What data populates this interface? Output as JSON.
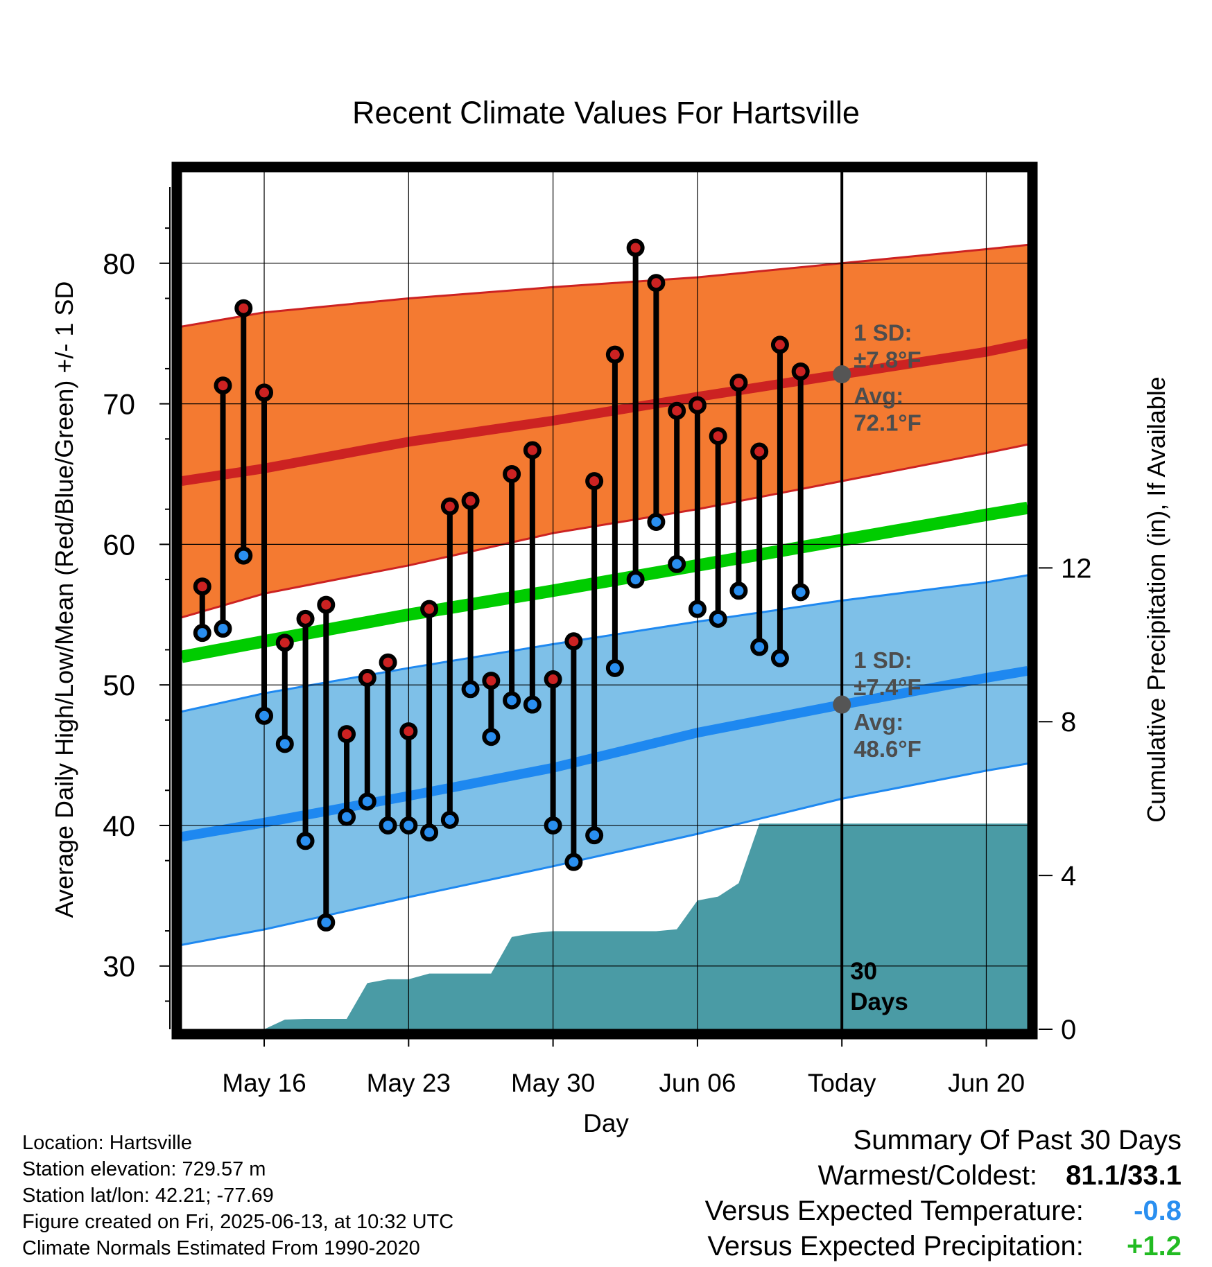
{
  "chart_data": {
    "type": "line",
    "title": "Recent Climate Values For Hartsville",
    "xlabel": "Day",
    "ylabel": "Average Daily High/Low/Mean (Red/Blue/Green) +/- 1 SD",
    "y2label": "Cumulative Precipitation (in), If Available",
    "ylim": [
      25.5,
      86.5
    ],
    "y2lim": [
      0,
      22.3
    ],
    "xlim": [
      "2025-05-12",
      "2025-06-22"
    ],
    "yticks": [
      "30",
      "40",
      "50",
      "60",
      "70",
      "80"
    ],
    "y2ticks": [
      "0",
      "4",
      "8",
      "12"
    ],
    "xticks": [
      {
        "x": "2025-05-16",
        "label": "May 16"
      },
      {
        "x": "2025-05-23",
        "label": "May 23"
      },
      {
        "x": "2025-05-30",
        "label": "May 30"
      },
      {
        "x": "2025-06-06",
        "label": "Jun 06"
      },
      {
        "x": "2025-06-13",
        "label": "Today"
      },
      {
        "x": "2025-06-20",
        "label": "Jun 20"
      }
    ],
    "today": "2025-06-13",
    "days_label": [
      "30",
      "Days"
    ],
    "normals": {
      "x": [
        "2025-05-12",
        "2025-05-16",
        "2025-05-23",
        "2025-05-30",
        "2025-06-06",
        "2025-06-13",
        "2025-06-20",
        "2025-06-22"
      ],
      "high_avg": [
        64.5,
        65.4,
        67.3,
        68.8,
        70.5,
        72.1,
        73.7,
        74.3
      ],
      "high_upper": [
        75.5,
        76.5,
        77.5,
        78.3,
        79.0,
        80.0,
        81.0,
        81.3
      ],
      "high_lower": [
        54.8,
        56.5,
        58.5,
        60.8,
        62.5,
        64.5,
        66.5,
        67.1
      ],
      "low_avg": [
        39.2,
        40.2,
        42.1,
        44.1,
        46.6,
        48.6,
        50.5,
        51.0
      ],
      "low_upper": [
        48.1,
        49.4,
        51.2,
        52.9,
        54.5,
        56.0,
        57.3,
        57.8
      ],
      "low_lower": [
        31.5,
        32.6,
        34.9,
        37.1,
        39.4,
        41.9,
        43.9,
        44.4
      ],
      "mean_avg": [
        52.0,
        53.1,
        55.0,
        56.7,
        58.5,
        60.3,
        62.1,
        62.6
      ]
    },
    "annotations": {
      "high_sd": [
        "1 SD:",
        "±7.8°F"
      ],
      "high_avg": [
        "Avg:",
        "72.1°F"
      ],
      "low_sd": [
        "1 SD:",
        "±7.4°F"
      ],
      "low_avg": [
        "Avg:",
        "48.6°F"
      ]
    },
    "observed": {
      "x": [
        "2025-05-13",
        "2025-05-14",
        "2025-05-15",
        "2025-05-16",
        "2025-05-17",
        "2025-05-18",
        "2025-05-19",
        "2025-05-20",
        "2025-05-21",
        "2025-05-22",
        "2025-05-23",
        "2025-05-24",
        "2025-05-25",
        "2025-05-26",
        "2025-05-27",
        "2025-05-28",
        "2025-05-29",
        "2025-05-30",
        "2025-05-31",
        "2025-06-01",
        "2025-06-02",
        "2025-06-03",
        "2025-06-04",
        "2025-06-05",
        "2025-06-06",
        "2025-06-07",
        "2025-06-08",
        "2025-06-09",
        "2025-06-10",
        "2025-06-11",
        "2025-06-12"
      ],
      "high": [
        57.0,
        71.3,
        76.8,
        70.8,
        53.0,
        54.7,
        55.7,
        46.5,
        50.5,
        51.6,
        46.7,
        55.4,
        62.7,
        63.1,
        50.3,
        65.0,
        66.7,
        50.4,
        53.1,
        64.5,
        73.5,
        81.1,
        78.6,
        69.5,
        69.9,
        67.7,
        71.5,
        66.6,
        74.2,
        72.3,
        null
      ],
      "low": [
        53.7,
        54.0,
        59.2,
        47.8,
        45.8,
        38.9,
        33.1,
        40.6,
        41.7,
        40.0,
        40.0,
        39.5,
        40.4,
        49.7,
        46.3,
        48.9,
        48.6,
        40.0,
        37.4,
        39.3,
        51.2,
        57.5,
        61.6,
        58.6,
        55.4,
        54.7,
        56.7,
        52.7,
        51.9,
        56.6,
        null
      ]
    },
    "precip_cumulative": {
      "x": [
        "2025-05-12",
        "2025-05-16",
        "2025-05-17",
        "2025-05-18",
        "2025-05-19",
        "2025-05-20",
        "2025-05-21",
        "2025-05-22",
        "2025-05-23",
        "2025-05-24",
        "2025-05-25",
        "2025-05-26",
        "2025-05-27",
        "2025-05-28",
        "2025-05-29",
        "2025-05-30",
        "2025-05-31",
        "2025-06-01",
        "2025-06-02",
        "2025-06-03",
        "2025-06-04",
        "2025-06-05",
        "2025-06-06",
        "2025-06-07",
        "2025-06-08",
        "2025-06-09",
        "2025-06-10",
        "2025-06-22"
      ],
      "values": [
        0,
        0,
        0.25,
        0.27,
        0.27,
        0.27,
        1.2,
        1.3,
        1.3,
        1.45,
        1.45,
        1.45,
        1.45,
        2.4,
        2.5,
        2.55,
        2.55,
        2.55,
        2.55,
        2.55,
        2.55,
        2.6,
        3.35,
        3.45,
        3.8,
        5.35,
        5.35,
        5.35
      ]
    },
    "colors": {
      "high_band": "#f47a31",
      "high_line": "#cc2222",
      "low_band": "#7ec0e8",
      "low_line": "#1e88f0",
      "mean_line": "#00cc00",
      "precip": "#4a9ba5",
      "high_marker": "#cc2222",
      "low_marker": "#2a8ff0",
      "annotation": "#4d4d4d",
      "today_marker": "#555555"
    },
    "grid": true
  },
  "footer": {
    "location": "Location: Hartsville",
    "elevation": "Station elevation: 729.57 m",
    "latlon": "Station lat/lon: 42.21; -77.69",
    "created": "Figure created on Fri, 2025-06-13, at 10:32 UTC",
    "normals": "Climate Normals Estimated From 1990-2020"
  },
  "summary": {
    "title": "Summary Of Past 30 Days",
    "warm_cold_label": "Warmest/Coldest:",
    "warm_cold_value": "81.1/33.1",
    "temp_label": "Versus Expected Temperature:",
    "temp_value": "-0.8",
    "temp_color": "#2a8ff0",
    "precip_label": "Versus Expected Precipitation:",
    "precip_value": "+1.2",
    "precip_color": "#22bb22"
  }
}
